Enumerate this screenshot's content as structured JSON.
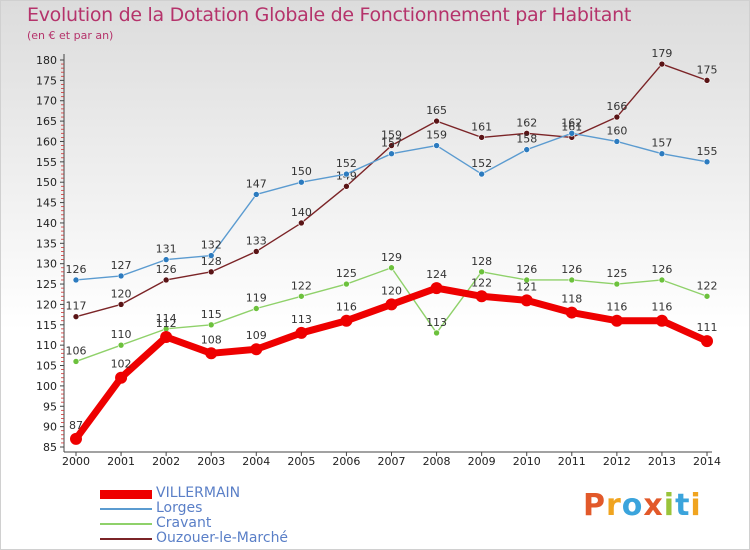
{
  "title": "Evolution de la Dotation Globale de Fonctionnement par Habitant",
  "subtitle": "(en € et par an)",
  "brand": {
    "text": "Proxiti",
    "colors": [
      "#e2592a",
      "#f0a41f",
      "#3ba4dc",
      "#e2592a",
      "#9ac43a",
      "#3ba4dc",
      "#f0a41f"
    ]
  },
  "chart_data": {
    "type": "line",
    "title": "Evolution de la Dotation Globale de Fonctionnement par Habitant",
    "ylabel": "(en € et par an)",
    "xlabel": "",
    "ylim": [
      85,
      180
    ],
    "ytick_step": 5,
    "grid": false,
    "x": [
      "2000",
      "2001",
      "2002",
      "2003",
      "2004",
      "2005",
      "2006",
      "2007",
      "2008",
      "2009",
      "2010",
      "2011",
      "2012",
      "2013",
      "2014"
    ],
    "series": [
      {
        "name": "Ouzouer-le-Marché",
        "color": "#7b2427",
        "marker": "#5a1416",
        "width": 1.4,
        "values": [
          117,
          120,
          126,
          128,
          133,
          140,
          149,
          159,
          165,
          161,
          162,
          161,
          166,
          179,
          175
        ]
      },
      {
        "name": "Lorges",
        "color": "#5b9bd0",
        "marker": "#2c7bbf",
        "width": 1.4,
        "values": [
          126,
          127,
          131,
          132,
          147,
          150,
          152,
          157,
          159,
          152,
          158,
          162,
          160,
          157,
          155
        ]
      },
      {
        "name": "Cravant",
        "color": "#8fd16a",
        "marker": "#6cc13c",
        "width": 1.4,
        "values": [
          106,
          110,
          114,
          115,
          119,
          122,
          125,
          129,
          113,
          128,
          126,
          126,
          125,
          126,
          122
        ]
      },
      {
        "name": "VILLERMAIN",
        "color": "#ee0000",
        "marker": "#ee0000",
        "width": 7,
        "values": [
          87,
          102,
          112,
          108,
          109,
          113,
          116,
          120,
          124,
          122,
          121,
          118,
          116,
          116,
          111
        ]
      }
    ],
    "legend_order": [
      "VILLERMAIN",
      "Lorges",
      "Cravant",
      "Ouzouer-le-Marché"
    ],
    "legend_position": "bottom-left"
  }
}
